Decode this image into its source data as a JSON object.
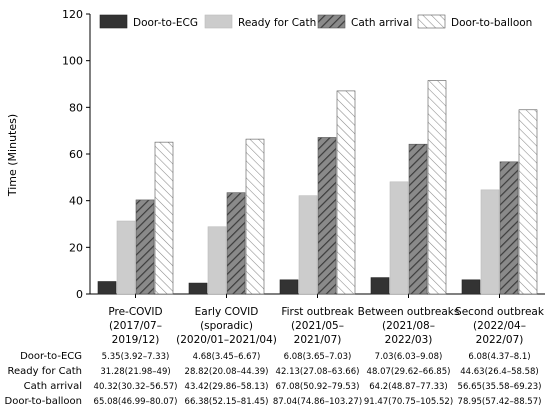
{
  "chart_data": {
    "type": "bar",
    "ylabel": "Time (Minutes)",
    "ylim": [
      0,
      120
    ],
    "yticks": [
      0,
      20,
      40,
      60,
      80,
      100,
      120
    ],
    "categories": [
      [
        "Pre-COVID",
        "(2017/07–",
        "2019/12)"
      ],
      [
        "Early COVID",
        "(sporadic)",
        "(2020/01–2021/04)"
      ],
      [
        "First outbreak",
        "(2021/05–",
        "2021/07)"
      ],
      [
        "Between outbreaks",
        "(2021/08–",
        "2022/03)"
      ],
      [
        "Second outbreak",
        "(2022/04–",
        "2022/07)"
      ]
    ],
    "legend_position": "top",
    "series": [
      {
        "name": "Door-to-ECG",
        "style": "solid-dark",
        "color": "#333333",
        "values": [
          5.35,
          4.68,
          6.08,
          7.03,
          6.08
        ]
      },
      {
        "name": "Ready for Cath",
        "style": "solid-light",
        "color": "#cccccc",
        "values": [
          31.28,
          28.82,
          42.13,
          48.07,
          44.63
        ]
      },
      {
        "name": "Cath arrival",
        "style": "hatch-dark",
        "color": "#666666",
        "values": [
          40.32,
          43.42,
          67.08,
          64.2,
          56.65
        ]
      },
      {
        "name": "Door-to-balloon",
        "style": "hatch-light",
        "color": "#ffffff",
        "values": [
          65.08,
          66.38,
          87.04,
          91.47,
          78.95
        ]
      }
    ],
    "table": {
      "rows": [
        {
          "label": "Door-to-ECG",
          "cells": [
            "5.35(3.92–7.33)",
            "4.68(3.45–6.67)",
            "6.08(3.65–7.03)",
            "7.03(6.03–9.08)",
            "6.08(4.37–8.1)"
          ]
        },
        {
          "label": "Ready for Cath",
          "cells": [
            "31.28(21.98–49)",
            "28.82(20.08–44.39)",
            "42.13(27.08–63.66)",
            "48.07(29.62–66.85)",
            "44.63(26.4–58.58)"
          ]
        },
        {
          "label": "Cath arrival",
          "cells": [
            "40.32(30.32–56.57)",
            "43.42(29.86–58.13)",
            "67.08(50.92–79.53)",
            "64.2(48.87–77.33)",
            "56.65(35.58–69.23)"
          ]
        },
        {
          "label": "Door-to-balloon",
          "cells": [
            "65.08(46.99–80.07)",
            "66.38(52.15–81.45)",
            "87.04(74.86–103.27)",
            "91.47(70.75–105.52)",
            "78.95(57.42–88.57)"
          ]
        }
      ]
    }
  }
}
